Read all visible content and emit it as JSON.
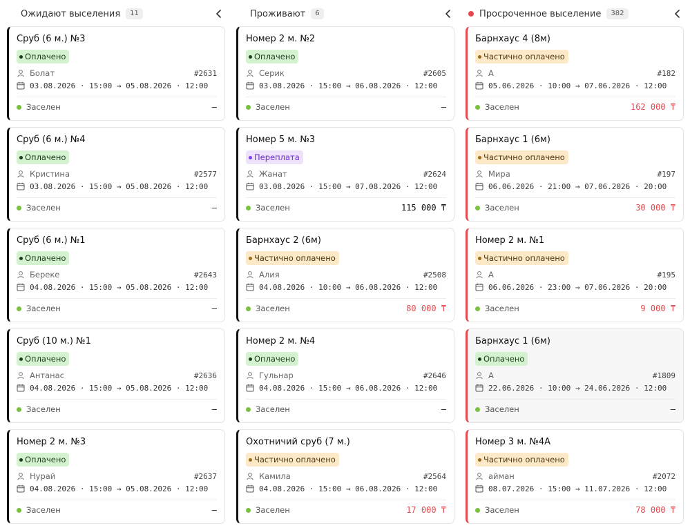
{
  "colors": {
    "paid_bg": "#d4f2cf",
    "partial_bg": "#fbe9c7",
    "overpaid_bg": "#eee2fb",
    "debt": "#e5484d",
    "status_dot": "#7ac142"
  },
  "columns": [
    {
      "title": "Ожидают выселения",
      "count": "11",
      "collapse_icon": "chevron-left-icon",
      "cards": [
        {
          "title": "Сруб (6 м.) №3",
          "badge": "Оплачено",
          "guest": "Болат",
          "number": "#2631",
          "dates": "03.08.2026 · 15:00 → 05.08.2026 · 12:00",
          "status": "Заселен",
          "amount": "—"
        },
        {
          "title": "Сруб (6 м.) №4",
          "badge": "Оплачено",
          "guest": "Кристина",
          "number": "#2577",
          "dates": "03.08.2026 · 15:00 → 05.08.2026 · 12:00",
          "status": "Заселен",
          "amount": "—"
        },
        {
          "title": "Сруб (6 м.) №1",
          "badge": "Оплачено",
          "guest": "Береке",
          "number": "#2643",
          "dates": "04.08.2026 · 15:00 → 05.08.2026 · 12:00",
          "status": "Заселен",
          "amount": "—"
        },
        {
          "title": "Сруб (10 м.) №1",
          "badge": "Оплачено",
          "guest": "Антанас",
          "number": "#2636",
          "dates": "04.08.2026 · 15:00 → 05.08.2026 · 12:00",
          "status": "Заселен",
          "amount": "—"
        },
        {
          "title": "Номер 2 м. №3",
          "badge": "Оплачено",
          "guest": "Нурай",
          "number": "#2637",
          "dates": "04.08.2026 · 15:00 → 05.08.2026 · 12:00",
          "status": "Заселен",
          "amount": "—"
        }
      ]
    },
    {
      "title": "Проживают",
      "count": "6",
      "collapse_icon": "chevron-left-icon",
      "cards": [
        {
          "title": "Номер 2 м. №2",
          "badge": "Оплачено",
          "guest": "Серик",
          "number": "#2605",
          "dates": "03.08.2026 · 15:00 → 06.08.2026 · 12:00",
          "status": "Заселен",
          "amount": "—"
        },
        {
          "title": "Номер 5 м. №3",
          "badge": "Переплата",
          "guest": "Жанат",
          "number": "#2624",
          "dates": "03.08.2026 · 15:00 → 07.08.2026 · 12:00",
          "status": "Заселен",
          "amount": "115 000 ₸"
        },
        {
          "title": "Барнхаус 2 (6м)",
          "badge": "Частично оплачено",
          "guest": "Алия",
          "number": "#2508",
          "dates": "04.08.2026 · 10:00 → 06.08.2026 · 12:00",
          "status": "Заселен",
          "amount": "80 000 ₸"
        },
        {
          "title": "Номер 2 м. №4",
          "badge": "Оплачено",
          "guest": "Гульнар",
          "number": "#2646",
          "dates": "04.08.2026 · 15:00 → 06.08.2026 · 12:00",
          "status": "Заселен",
          "amount": "—"
        },
        {
          "title": "Охотничий сруб (7 м.)",
          "badge": "Частично оплачено",
          "guest": "Камила",
          "number": "#2564",
          "dates": "04.08.2026 · 15:00 → 06.08.2026 · 12:00",
          "status": "Заселен",
          "amount": "17 000 ₸"
        }
      ]
    },
    {
      "title": "Просроченное выселение",
      "count": "382",
      "collapse_icon": "chevron-left-icon",
      "cards": [
        {
          "title": "Барнхаус 4 (8м)",
          "badge": "Частично оплачено",
          "guest": "А",
          "number": "#182",
          "dates": "05.06.2026 · 10:00 → 07.06.2026 · 12:00",
          "status": "Заселен",
          "amount": "162 000 ₸"
        },
        {
          "title": "Барнхаус 1 (6м)",
          "badge": "Частично оплачено",
          "guest": "Мира",
          "number": "#197",
          "dates": "06.06.2026 · 21:00 → 07.06.2026 · 20:00",
          "status": "Заселен",
          "amount": "30 000 ₸"
        },
        {
          "title": "Номер 2 м. №1",
          "badge": "Частично оплачено",
          "guest": "А",
          "number": "#195",
          "dates": "06.06.2026 · 23:00 → 07.06.2026 · 20:00",
          "status": "Заселен",
          "amount": "9 000 ₸"
        },
        {
          "title": "Барнхаус 1 (6м)",
          "badge": "Оплачено",
          "guest": "А",
          "number": "#1809",
          "dates": "22.06.2026 · 10:00 → 24.06.2026 · 12:00",
          "status": "Заселен",
          "amount": "—"
        },
        {
          "title": "Номер 3 м. №4А",
          "badge": "Частично оплачено",
          "guest": "айман",
          "number": "#2072",
          "dates": "08.07.2026 · 15:00 → 11.07.2026 · 12:00",
          "status": "Заселен",
          "amount": "78 000 ₸"
        }
      ]
    }
  ]
}
